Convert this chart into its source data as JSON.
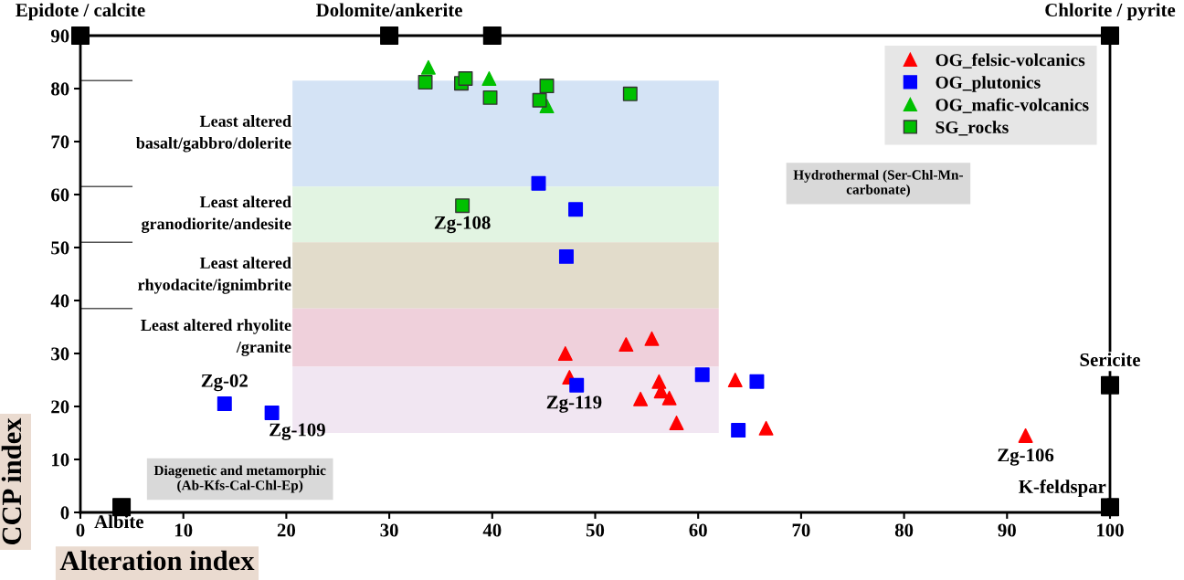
{
  "chart_data": {
    "type": "scatter",
    "xlabel": "Alteration index",
    "ylabel": "CCP index",
    "xlim": [
      0,
      100
    ],
    "ylim": [
      0,
      90
    ],
    "xticks": [
      0,
      10,
      20,
      30,
      40,
      50,
      60,
      70,
      80,
      90,
      100
    ],
    "yticks": [
      0,
      10,
      20,
      30,
      40,
      50,
      60,
      70,
      80,
      90
    ],
    "grid": false,
    "legend": "top right",
    "series": [
      {
        "name": "OG_felsic-volcanics",
        "color": "#ff0000",
        "marker": "triangle",
        "x": [
          47.1,
          53.0,
          55.5,
          47.5,
          56.2,
          56.4,
          54.4,
          57.2,
          57.9,
          63.6,
          66.6,
          91.8
        ],
        "values": [
          30.0,
          31.7,
          32.8,
          25.5,
          24.7,
          22.9,
          21.4,
          21.6,
          16.9,
          25.0,
          15.9,
          14.5
        ]
      },
      {
        "name": "OG_plutonics",
        "color": "#0000ff",
        "marker": "square",
        "x": [
          14.0,
          18.6,
          44.5,
          48.1,
          47.2,
          48.2,
          60.4,
          65.7,
          63.9
        ],
        "values": [
          20.5,
          18.8,
          62.1,
          57.2,
          48.3,
          24.0,
          26.0,
          24.7,
          15.5
        ]
      },
      {
        "name": "OG_mafic-volcanics",
        "color": "#00c000",
        "marker": "triangle",
        "x": [
          33.8,
          39.7,
          45.3
        ],
        "values": [
          84.0,
          81.9,
          76.7
        ]
      },
      {
        "name": "SG_rocks",
        "color": "#00c000",
        "marker": "square",
        "x": [
          33.5,
          37.0,
          37.4,
          39.8,
          44.6,
          45.3,
          53.4,
          37.1
        ],
        "values": [
          81.2,
          81.0,
          81.9,
          78.3,
          77.8,
          80.5,
          79.0,
          57.9
        ]
      },
      {
        "color": "#000000",
        "marker": "square",
        "x": [
          0,
          30,
          40,
          100,
          100,
          100,
          4
        ],
        "values": [
          90,
          90,
          90,
          90,
          24,
          1,
          1
        ]
      }
    ],
    "bands": [
      {
        "axis": "y",
        "from": 61.5,
        "to": 81.5,
        "color": "#d4e3f5",
        "label": "Least altered\nbasalt/gabbro/dolerite"
      },
      {
        "axis": "y",
        "from": 51,
        "to": 61.5,
        "color": "#e2f4e2",
        "label": "Least altered\ngranodiorite/andesite"
      },
      {
        "axis": "y",
        "from": 38.5,
        "to": 51,
        "color": "#e2dccb",
        "label": "Least altered\nrhyodacite/ignimbrite"
      },
      {
        "axis": "y",
        "from": 27.5,
        "to": 38.5,
        "color": "#efd0db",
        "label": "Least altered rhyolite\n/granite"
      },
      {
        "axis": "y",
        "from": 15,
        "to": 27.5,
        "color": "#f1e6f2"
      }
    ],
    "annotations": [
      {
        "text": "Epidote / calcite",
        "x": 0,
        "y": 90
      },
      {
        "text": "Dolomite/ankerite",
        "x": 30,
        "y": 90
      },
      {
        "text": "Chlorite / pyrite",
        "x": 100,
        "y": 90
      },
      {
        "text": "Sericite",
        "x": 100,
        "y": 24
      },
      {
        "text": "K-feldspar",
        "x": 100,
        "y": 1
      },
      {
        "text": "Albite",
        "x": 4,
        "y": 1
      },
      {
        "text": "Zg-02",
        "x": 14.0,
        "y": 20.5
      },
      {
        "text": "Zg-109",
        "x": 18.6,
        "y": 18.8
      },
      {
        "text": "Zg-108",
        "x": 37.1,
        "y": 57.9
      },
      {
        "text": "Zg-119",
        "x": 48.2,
        "y": 24.0
      },
      {
        "text": "Zg-106",
        "x": 91.8,
        "y": 14.5
      },
      "Hydrothermal (Ser-Chl-Mn-\ncarbonate)",
      "Diagenetic and metamorphic\n(Ab-Kfs-Cal-Chl-Ep)"
    ]
  }
}
